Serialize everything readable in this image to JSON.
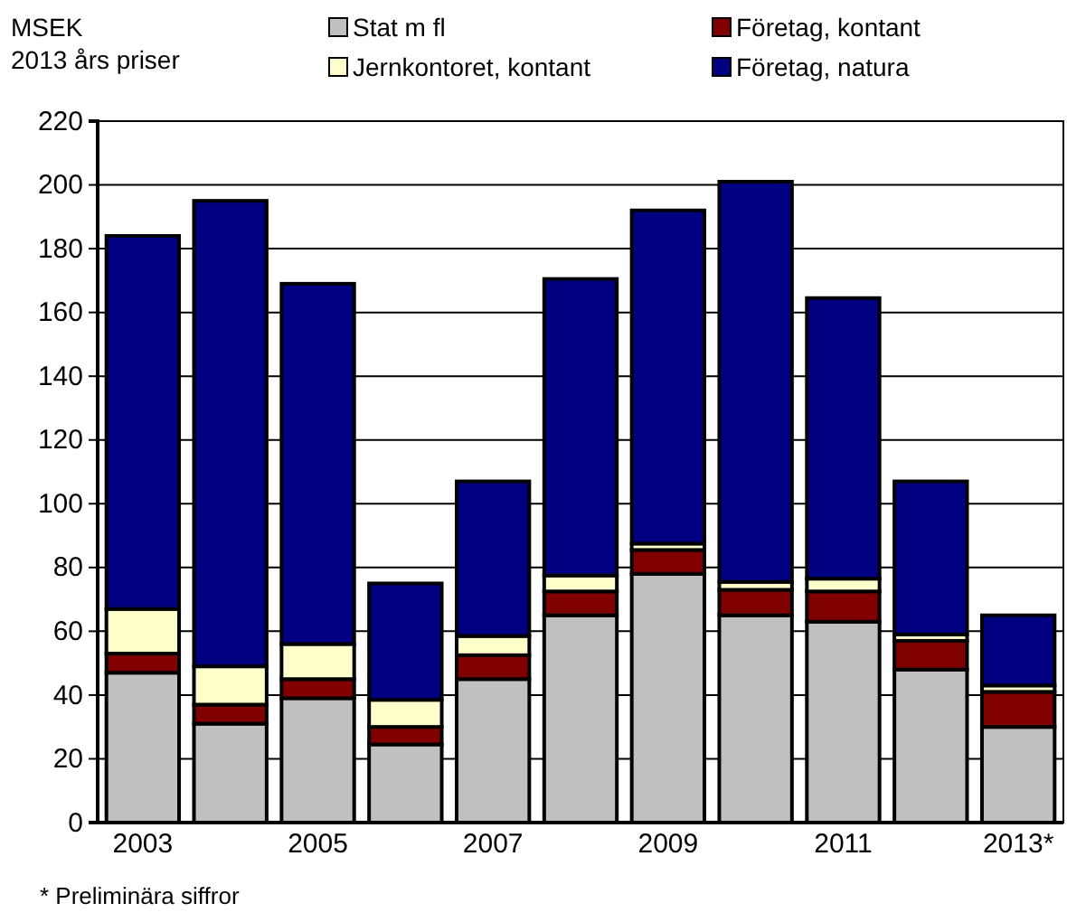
{
  "chart_data": {
    "type": "bar",
    "stacked": true,
    "ylabel": "MSEK\n2013 års priser",
    "categories": [
      "2003",
      null,
      "2005",
      null,
      "2007",
      null,
      "2009",
      null,
      "2011",
      null,
      "2013*"
    ],
    "series": [
      {
        "name": "Stat m fl",
        "color": "#c0c0c0",
        "values": [
          47,
          31,
          39,
          24.5,
          45,
          65,
          78,
          65,
          63,
          48,
          30
        ]
      },
      {
        "name": "Företag, kontant",
        "color": "#800000",
        "values": [
          6,
          6,
          6,
          5.5,
          7.5,
          7.5,
          7.5,
          8,
          9.5,
          9,
          11
        ]
      },
      {
        "name": "Jernkontoret, kontant",
        "color": "#ffffcc",
        "values": [
          14,
          12,
          11,
          8.5,
          6,
          5,
          2,
          2.5,
          4,
          2,
          2
        ]
      },
      {
        "name": "Företag, natura",
        "color": "#000080",
        "values": [
          117,
          146,
          113,
          36.5,
          48.5,
          93,
          104.5,
          125.5,
          88,
          48,
          22
        ]
      }
    ],
    "ylim": [
      0,
      220
    ],
    "yticks": [
      0,
      20,
      40,
      60,
      80,
      100,
      120,
      140,
      160,
      180,
      200,
      220
    ],
    "grid": "y",
    "legend": "top",
    "annotations": [
      "* Preliminära siffror"
    ]
  }
}
